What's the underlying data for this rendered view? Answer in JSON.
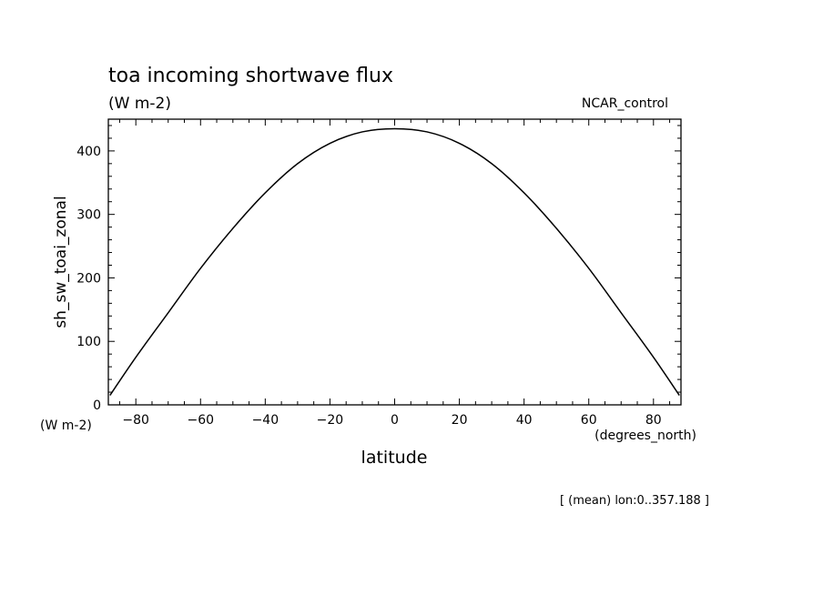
{
  "title": "toa incoming shortwave flux",
  "units": "(W m-2)",
  "dataset": "NCAR_control",
  "footer": "[ (mean) lon:0..357.188 ]",
  "chart_data": {
    "type": "line",
    "title": "toa incoming shortwave flux",
    "subtitle": "(W m-2)",
    "xlabel": "latitude",
    "xunits": "(degrees_north)",
    "ylabel": "sh_sw_toai_zonal",
    "yunits": "(W m-2)",
    "xlim": [
      -88.5,
      88.5
    ],
    "ylim": [
      0,
      450
    ],
    "xticks": [
      -80,
      -60,
      -40,
      -20,
      0,
      20,
      40,
      60,
      80
    ],
    "yticks": [
      0,
      100,
      200,
      300,
      400
    ],
    "grid": false,
    "color": "#000000",
    "x": [
      -88,
      -80,
      -70,
      -60,
      -50,
      -40,
      -30,
      -20,
      -10,
      0,
      10,
      20,
      30,
      40,
      50,
      60,
      70,
      80,
      88
    ],
    "y": [
      15,
      75,
      145,
      215,
      278,
      334,
      380,
      412,
      430,
      435,
      430,
      412,
      380,
      334,
      278,
      215,
      145,
      75,
      15
    ]
  }
}
